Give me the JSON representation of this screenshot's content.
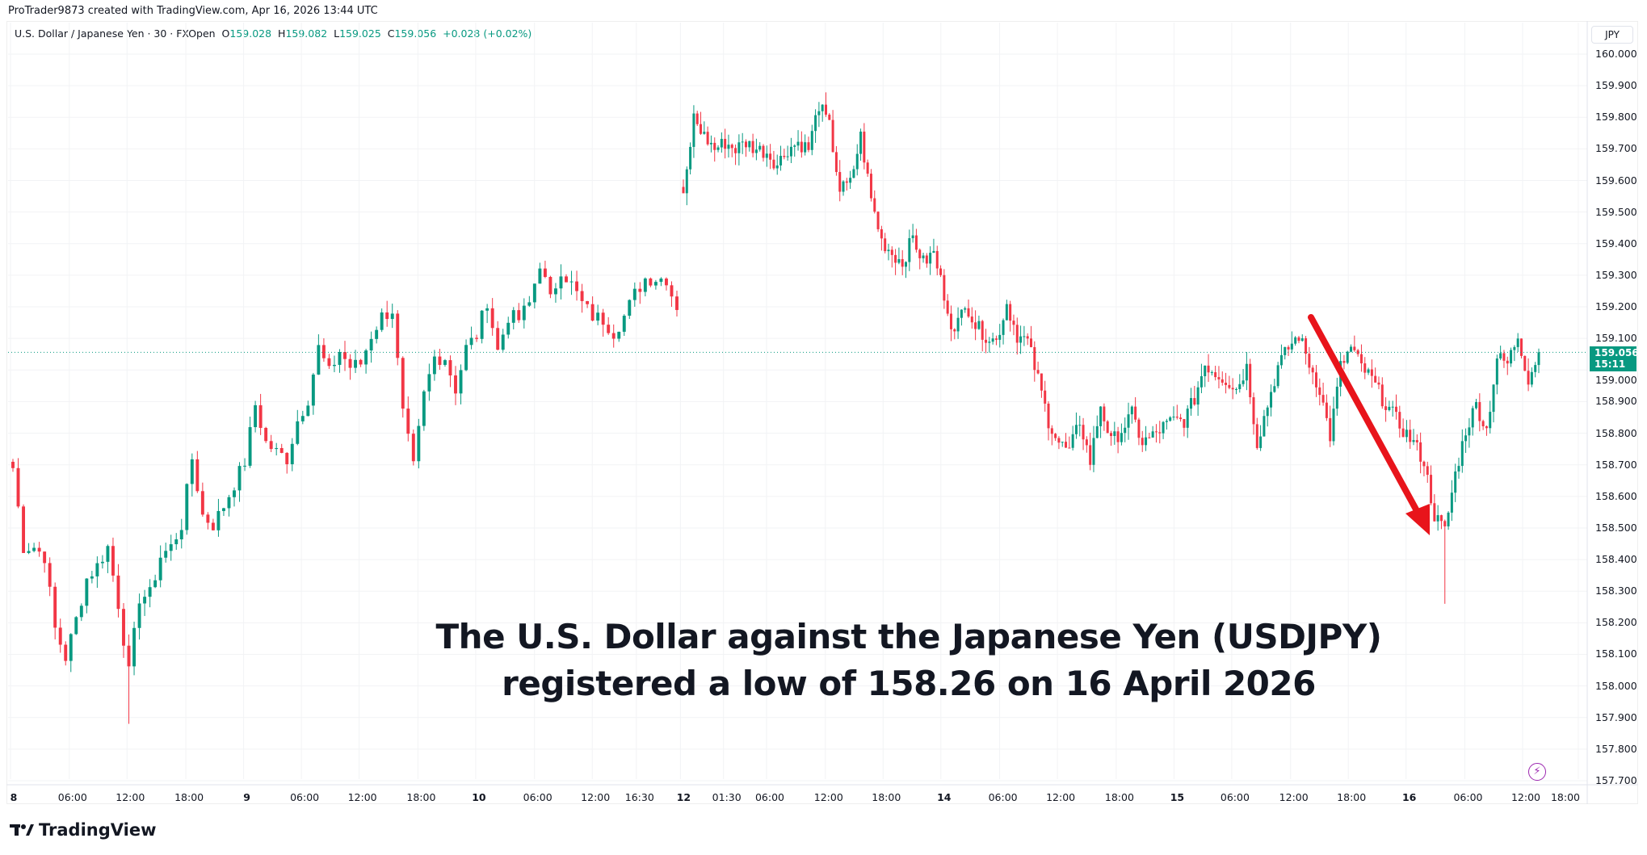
{
  "header": {
    "credit": "ProTrader9873 created with TradingView.com, Apr 16, 2026 13:44 UTC"
  },
  "legend": {
    "symbol": "U.S. Dollar / Japanese Yen · 30 · FXOpen",
    "o_label": "O",
    "o": "159.028",
    "h_label": "H",
    "h": "159.082",
    "l_label": "L",
    "l": "159.025",
    "c_label": "C",
    "c": "159.056",
    "change": "+0.028 (+0.02%)"
  },
  "price_axis": {
    "currency": "JPY",
    "last_price": "159.056",
    "countdown": "15:11"
  },
  "annotation": {
    "line1": "The U.S. Dollar against the Japanese Yen (USDJPY)",
    "line2": "registered a low of 158.26 on 16 April 2026"
  },
  "footer": {
    "brand": "TradingView"
  },
  "icons": {
    "lightning": "lightning-icon",
    "logo": "tradingview-logo-icon"
  },
  "colors": {
    "up": "#089981",
    "down": "#f23645",
    "arrow": "#e8141b",
    "tag": "#089981"
  },
  "chart_data": {
    "type": "candlestick",
    "title": "U.S. Dollar / Japanese Yen · 30 · FXOpen",
    "ylabel": "JPY",
    "ylim": [
      157.68,
      160.04
    ],
    "yticks": [
      "160.000",
      "159.900",
      "159.800",
      "159.700",
      "159.600",
      "159.500",
      "159.400",
      "159.300",
      "159.200",
      "159.100",
      "159.000",
      "158.900",
      "158.800",
      "158.700",
      "158.600",
      "158.500",
      "158.400",
      "158.300",
      "158.200",
      "158.100",
      "158.000",
      "157.900",
      "157.800",
      "157.700"
    ],
    "xticks": [
      {
        "t": "8",
        "b": true
      },
      {
        "t": "06:00"
      },
      {
        "t": "12:00"
      },
      {
        "t": "18:00"
      },
      {
        "t": "9",
        "b": true
      },
      {
        "t": "06:00"
      },
      {
        "t": "12:00"
      },
      {
        "t": "18:00"
      },
      {
        "t": "10",
        "b": true
      },
      {
        "t": "06:00"
      },
      {
        "t": "12:00"
      },
      {
        "t": "16:30"
      },
      {
        "t": "12",
        "b": true
      },
      {
        "t": "01:30"
      },
      {
        "t": "06:00"
      },
      {
        "t": "12:00"
      },
      {
        "t": "18:00"
      },
      {
        "t": "14",
        "b": true
      },
      {
        "t": "06:00"
      },
      {
        "t": "12:00"
      },
      {
        "t": "18:00"
      },
      {
        "t": "15",
        "b": true
      },
      {
        "t": "06:00"
      },
      {
        "t": "12:00"
      },
      {
        "t": "18:00"
      },
      {
        "t": "16",
        "b": true
      },
      {
        "t": "06:00"
      },
      {
        "t": "12:00"
      },
      {
        "t": "18:00"
      }
    ],
    "segment1_closes": [
      158.69,
      158.44,
      158.44,
      158.41,
      158.18,
      158.09,
      158.21,
      158.34,
      158.38,
      158.44,
      158.26,
      158.04,
      158.28,
      158.29,
      158.41,
      158.44,
      158.51,
      158.72,
      158.54,
      158.51,
      158.57,
      158.64,
      158.71,
      158.89,
      158.77,
      158.74,
      158.72,
      158.84,
      158.91,
      159.07,
      158.99,
      159.06,
      159.01,
      159.02,
      159.11,
      159.17,
      159.19,
      158.86,
      158.69,
      158.92,
      159.04,
      159.04,
      158.94,
      159.07,
      159.11,
      159.22,
      159.06,
      159.17,
      159.16,
      159.21,
      159.34,
      159.22,
      159.32,
      159.27,
      159.21,
      159.17,
      159.16,
      159.12,
      159.17,
      159.24,
      159.29,
      159.29,
      159.29,
      159.19
    ],
    "segment2_closes": [
      159.54,
      159.8,
      159.74,
      159.7,
      159.72,
      159.7,
      159.72,
      159.7,
      159.69,
      159.65,
      159.7,
      159.72,
      159.7,
      159.84,
      159.77,
      159.57,
      159.59,
      159.74,
      159.54,
      159.41,
      159.37,
      159.34,
      159.42,
      159.34,
      159.37,
      159.24,
      159.11,
      159.22,
      159.14,
      159.11,
      159.09,
      159.21,
      159.11,
      159.09,
      158.97,
      158.84,
      158.77,
      158.74,
      158.84,
      158.71,
      158.89,
      158.77,
      158.81,
      158.86,
      158.77,
      158.79,
      158.82,
      158.84,
      158.84,
      158.91,
      159.02,
      158.99,
      158.97,
      158.94,
      159.01,
      158.77,
      158.89,
      159.01,
      159.07,
      159.11,
      159.02,
      158.94,
      158.79,
      159.01,
      159.07,
      159.01,
      158.97,
      158.91,
      158.86,
      158.81,
      158.77,
      158.71,
      158.54,
      158.49,
      158.67,
      158.81,
      158.89,
      158.81,
      159.04,
      159.02,
      159.11,
      158.97,
      159.056
    ],
    "segment2_interp": 3,
    "notable_low": {
      "value": 158.26,
      "date": "16 April 2026"
    },
    "last_price": 159.056
  }
}
